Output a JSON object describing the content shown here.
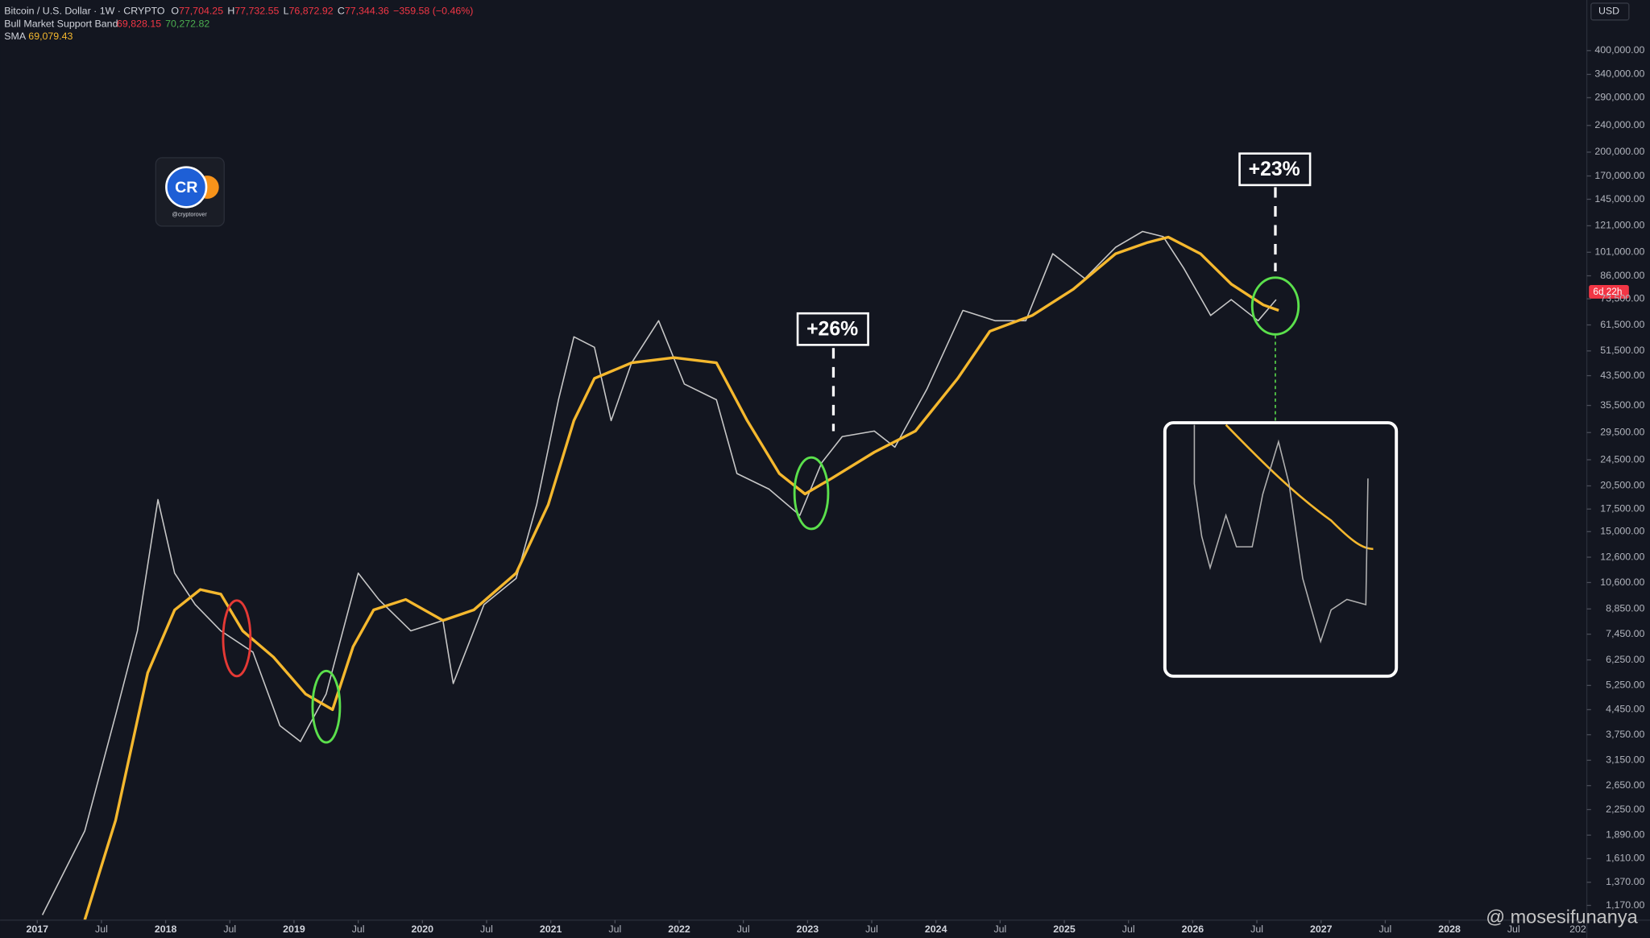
{
  "chart_data": {
    "type": "line",
    "header": {
      "ohlc": [
        {
          "label": "O",
          "value": "77,704.25"
        },
        {
          "label": "H",
          "value": "77,732.55"
        },
        {
          "label": "L",
          "value": "76,872.92"
        },
        {
          "label": "C",
          "value": "77,344.36"
        }
      ],
      "change": "−359.58 (−0.46%)",
      "band_name": "Bull Market Support Band",
      "band_values": [
        "69,828.15",
        "70,272.82"
      ],
      "sma_value": "69,079.43"
    },
    "currency": "USD",
    "countdown": "6d 22h",
    "annotations": [
      "+26%",
      "+23%"
    ],
    "logo": {
      "text": "CR",
      "handle": "@cryptorover"
    },
    "watermark": "@ mosesifunanya",
    "log_scale": true,
    "xlim": [
      2016.71,
      2029.07
    ],
    "ylim": [
      1058,
      565000
    ],
    "xticks": [
      2017,
      {
        "value": 2017.5,
        "label": "Jul"
      },
      2018,
      {
        "value": 2018.5,
        "label": "Jul"
      },
      2019,
      {
        "value": 2019.5,
        "label": "Jul"
      },
      2020,
      {
        "value": 2020.5,
        "label": "Jul"
      },
      2021,
      {
        "value": 2021.5,
        "label": "Jul"
      },
      2022,
      {
        "value": 2022.5,
        "label": "Jul"
      },
      2023,
      {
        "value": 2023.5,
        "label": "Jul"
      },
      2024,
      {
        "value": 2024.5,
        "label": "Jul"
      },
      2025,
      {
        "value": 2025.5,
        "label": "Jul"
      },
      2026,
      {
        "value": 2026.5,
        "label": "Jul"
      },
      2027,
      {
        "value": 2027.5,
        "label": "Jul"
      },
      2028,
      {
        "value": 2028.5,
        "label": "Jul"
      },
      {
        "value": 2029,
        "label": "202"
      }
    ],
    "yticks": [
      {
        "value": 400000,
        "label": "400,000.00"
      },
      {
        "value": 340000,
        "label": "340,000.00"
      },
      {
        "value": 290000,
        "label": "290,000.00"
      },
      {
        "value": 240000,
        "label": "240,000.00"
      },
      {
        "value": 200000,
        "label": "200,000.00"
      },
      {
        "value": 170000,
        "label": "170,000.00"
      },
      {
        "value": 145000,
        "label": "145,000.00"
      },
      {
        "value": 121000,
        "label": "121,000.00"
      },
      {
        "value": 101000,
        "label": "101,000.00"
      },
      {
        "value": 86000,
        "label": "86,000.00"
      },
      {
        "value": 73500,
        "label": "73,500.00"
      },
      {
        "value": 61500,
        "label": "61,500.00"
      },
      {
        "value": 51500,
        "label": "51,500.00"
      },
      {
        "value": 43500,
        "label": "43,500.00"
      },
      {
        "value": 35500,
        "label": "35,500.00"
      },
      {
        "value": 29500,
        "label": "29,500.00"
      },
      {
        "value": 24500,
        "label": "24,500.00"
      },
      {
        "value": 20500,
        "label": "20,500.00"
      },
      {
        "value": 17500,
        "label": "17,500.00"
      },
      {
        "value": 15000,
        "label": "15,000.00"
      },
      {
        "value": 12600,
        "label": "12,600.00"
      },
      {
        "value": 10600,
        "label": "10,600.00"
      },
      {
        "value": 8850,
        "label": "8,850.00"
      },
      {
        "value": 7450,
        "label": "7,450.00"
      },
      {
        "value": 6250,
        "label": "6,250.00"
      },
      {
        "value": 5250,
        "label": "5,250.00"
      },
      {
        "value": 4450,
        "label": "4,450.00"
      },
      {
        "value": 3750,
        "label": "3,750.00"
      },
      {
        "value": 3150,
        "label": "3,150.00"
      },
      {
        "value": 2650,
        "label": "2,650.00"
      },
      {
        "value": 2250,
        "label": "2,250.00"
      },
      {
        "value": 1890,
        "label": "1,890.00"
      },
      {
        "value": 1610,
        "label": "1,610.00"
      },
      {
        "value": 1370,
        "label": "1,370.00"
      },
      {
        "value": 1170,
        "label": "1,170.00"
      }
    ],
    "series": [
      {
        "name": "Bitcoin / U.S. Dollar · 1W · CRYPTO",
        "color": "#c8c8c8",
        "width": 1.2,
        "x": [
          2017.04,
          2017.37,
          2017.61,
          2017.78,
          2017.94,
          2018.07,
          2018.23,
          2018.43,
          2018.68,
          2018.89,
          2019.05,
          2019.25,
          2019.5,
          2019.66,
          2019.91,
          2020.16,
          2020.24,
          2020.48,
          2020.73,
          2020.89,
          2021.06,
          2021.18,
          2021.34,
          2021.47,
          2021.63,
          2021.84,
          2022.04,
          2022.29,
          2022.45,
          2022.7,
          2022.94,
          2023.11,
          2023.27,
          2023.52,
          2023.68,
          2023.93,
          2024.21,
          2024.46,
          2024.7,
          2024.91,
          2025.16,
          2025.4,
          2025.61,
          2025.77,
          2025.93,
          2026.14,
          2026.3,
          2026.51,
          2026.65
        ],
        "values": [
          1096,
          1945,
          4285,
          7620,
          18670,
          11300,
          9120,
          7620,
          6590,
          3990,
          3580,
          4950,
          11300,
          9440,
          7620,
          8180,
          5320,
          9120,
          10900,
          18030,
          36900,
          56700,
          52800,
          32000,
          47500,
          63300,
          41100,
          36900,
          22300,
          20050,
          16770,
          24000,
          28700,
          29800,
          26700,
          39700,
          67900,
          63300,
          63300,
          100000,
          84400,
          104500,
          116400,
          112400,
          90600,
          65600,
          73100,
          63300,
          73100
        ]
      },
      {
        "name": "SMA",
        "color": "#f5b82e",
        "width": 2.6,
        "x": [
          2017.37,
          2017.61,
          2017.86,
          2018.07,
          2018.27,
          2018.43,
          2018.6,
          2018.84,
          2019.09,
          2019.3,
          2019.46,
          2019.62,
          2019.87,
          2020.16,
          2020.4,
          2020.73,
          2020.98,
          2021.18,
          2021.34,
          2021.63,
          2021.96,
          2022.29,
          2022.53,
          2022.78,
          2022.98,
          2023.19,
          2023.52,
          2023.84,
          2024.17,
          2024.42,
          2024.75,
          2025.07,
          2025.4,
          2025.65,
          2025.81,
          2026.06,
          2026.3,
          2026.55,
          2026.67
        ],
        "values": [
          1060,
          2090,
          5720,
          8790,
          10100,
          9790,
          7620,
          6370,
          4950,
          4450,
          6840,
          8790,
          9440,
          8180,
          8790,
          11300,
          18030,
          32000,
          42700,
          47500,
          49200,
          47500,
          32000,
          22300,
          19400,
          21600,
          25800,
          29800,
          42700,
          58900,
          65600,
          78500,
          100000,
          108000,
          112000,
          100000,
          81300,
          70500,
          67900
        ]
      }
    ]
  }
}
